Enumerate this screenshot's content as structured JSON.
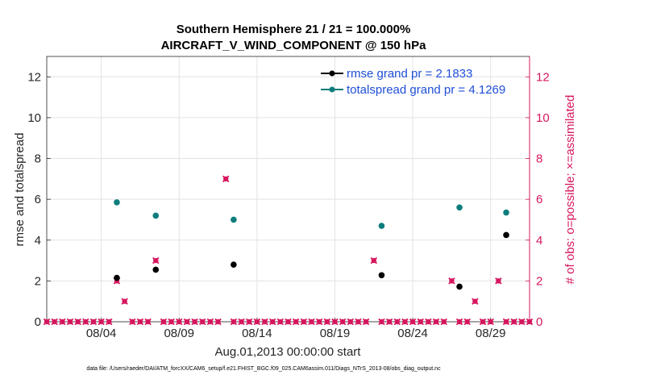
{
  "chart_data": {
    "type": "scatter",
    "title_line1": "Southern Hemisphere 21 / 21 = 100.000%",
    "title_line2": "AIRCRAFT_V_WIND_COMPONENT @ 150 hPa",
    "xlabel": "Aug.01,2013 00:00:00 start",
    "ylabel_left": "rmse and totalspread",
    "ylabel_right": "# of obs: o=possible; ×=assimilated",
    "xlim": [
      0.5,
      31.5
    ],
    "ylim_left": [
      0,
      13
    ],
    "ylim_right": [
      0,
      13
    ],
    "x_ticks": [
      4,
      9,
      14,
      19,
      24,
      29
    ],
    "x_tick_labels": [
      "08/04",
      "08/09",
      "08/14",
      "08/19",
      "08/24",
      "08/29"
    ],
    "y_ticks_left": [
      0,
      2,
      4,
      6,
      8,
      10,
      12
    ],
    "y_ticks_right": [
      0,
      2,
      4,
      6,
      8,
      10,
      12
    ],
    "grid": true,
    "legend_position": "top-right",
    "series": [
      {
        "name": "rmse grand pr = 2.1833",
        "color": "#000000",
        "axis": "left",
        "points": [
          [
            5,
            2.15
          ],
          [
            7.5,
            2.55
          ],
          [
            12.5,
            2.8
          ],
          [
            22,
            2.28
          ],
          [
            27,
            1.72
          ],
          [
            30,
            4.25
          ]
        ]
      },
      {
        "name": "totalspread grand pr = 4.1269",
        "color": "#0e7d7d",
        "axis": "left",
        "points": [
          [
            5,
            5.85
          ],
          [
            7.5,
            5.2
          ],
          [
            12.5,
            5.0
          ],
          [
            22,
            4.7
          ],
          [
            27,
            5.6
          ],
          [
            30,
            5.35
          ]
        ]
      }
    ],
    "obs": {
      "color": "#d6175f",
      "axis": "right",
      "x_start": 0.5,
      "x_step": 0.5,
      "counts": [
        0,
        0,
        0,
        0,
        0,
        0,
        0,
        0,
        0,
        2,
        1,
        0,
        0,
        0,
        3,
        0,
        0,
        0,
        0,
        0,
        0,
        0,
        0,
        7,
        0,
        0,
        0,
        0,
        0,
        0,
        0,
        0,
        0,
        0,
        0,
        0,
        0,
        0,
        0,
        0,
        0,
        0,
        3,
        0,
        0,
        0,
        0,
        0,
        0,
        0,
        0,
        0,
        2,
        0,
        0,
        1,
        0,
        0,
        2,
        0,
        0,
        0,
        0
      ]
    },
    "footnote": "data file: /Users/raeder/DAI/ATM_forcXX/CAM6_setup/f.e21.FHIST_BGC.f09_025.CAM6assim.011/Diags_NTrS_2013-08/obs_diag_output.nc"
  }
}
